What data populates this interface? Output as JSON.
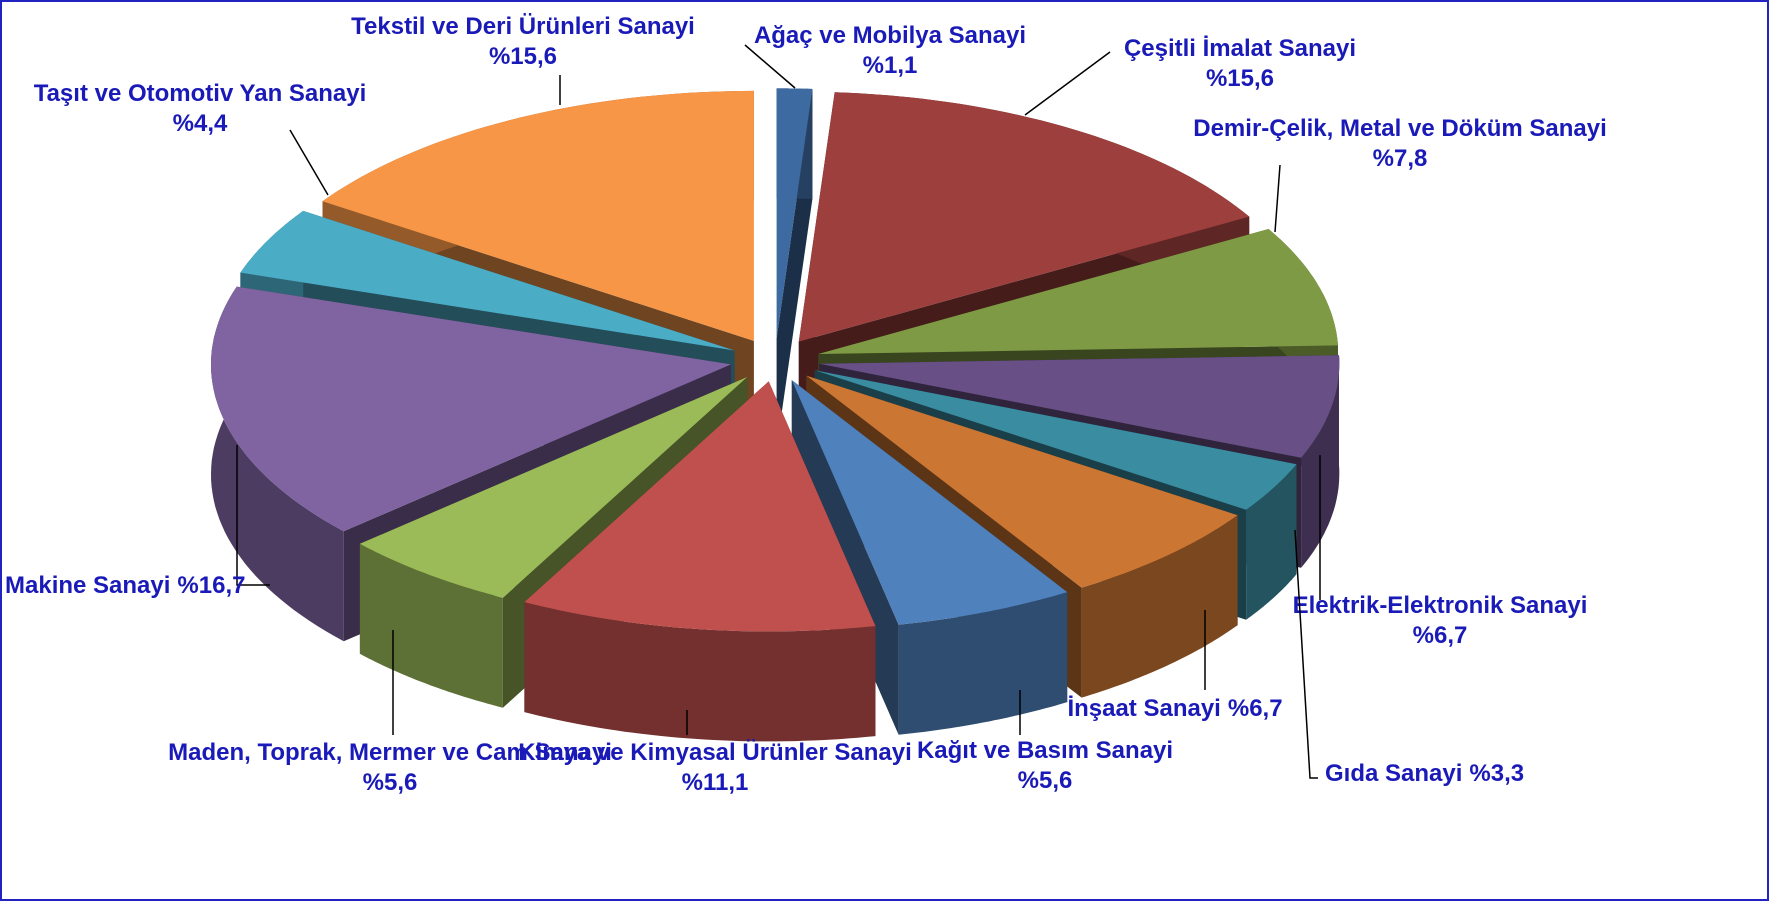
{
  "chart_data": {
    "type": "pie",
    "categories": [
      "Ağaç ve Mobilya Sanayi",
      "Çeşitli İmalat Sanayi",
      "Demir-Çelik, Metal ve Döküm Sanayi",
      "Elektrik-Elektronik Sanayi",
      "Gıda Sanayi",
      "İnşaat Sanayi",
      "Kağıt ve Basım Sanayi",
      "Kimya ve Kimyasal Ürünler Sanayi",
      "Maden, Toprak, Mermer ve Cam Sanayi",
      "Makine Sanayi",
      "Taşıt ve Otomotiv Yan Sanayi",
      "Tekstil ve Deri Ürünleri Sanayi"
    ],
    "values": [
      1.1,
      15.6,
      7.8,
      6.7,
      3.3,
      6.7,
      5.6,
      11.1,
      5.6,
      16.7,
      4.4,
      15.6
    ],
    "value_labels": [
      "%1,1",
      "%15,6",
      "%7,8",
      "%6,7",
      "%3,3",
      "%6,7",
      "%5,6",
      "%11,1",
      "%5,6",
      "%16,7",
      "%4,4",
      "%15,6"
    ],
    "colors": [
      "#3d6aa0",
      "#9c3f3d",
      "#7f9a45",
      "#684f86",
      "#3a8ca0",
      "#cc7634",
      "#4f81bd",
      "#c0504d",
      "#9bbb59",
      "#8064a2",
      "#4bacc6",
      "#f79646"
    ]
  }
}
